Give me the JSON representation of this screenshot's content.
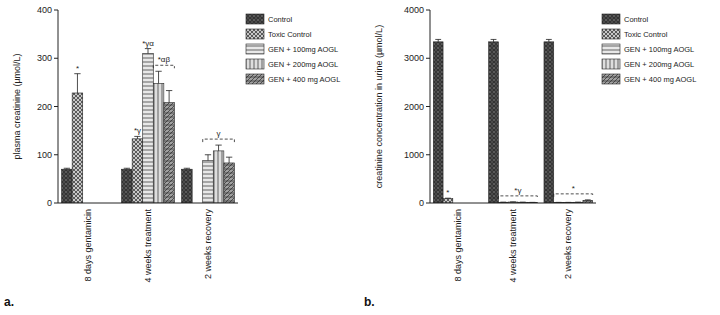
{
  "chart_data": [
    {
      "type": "bar",
      "title": "a.",
      "y_label": "plasma creatinine (µmol/L)",
      "categories": [
        "8 days gentamicin",
        "4 weeks treatment",
        "2 weeks recovery"
      ],
      "ylim": [
        0,
        400
      ],
      "yticks": [
        0,
        100,
        200,
        300,
        400
      ],
      "grid": false,
      "legend": "right",
      "series": [
        {
          "name": "Control",
          "color": "#5a5a5a",
          "values": [
            70,
            70,
            70
          ],
          "errors": [
            2,
            2,
            2
          ]
        },
        {
          "name": "Toxic Control",
          "color": "#c8c8c8",
          "values": [
            228,
            133,
            null
          ],
          "errors": [
            40,
            5,
            null
          ]
        },
        {
          "name": "GEN + 100mg AOGL",
          "color": "#e8e8e8",
          "values": [
            null,
            310,
            88
          ],
          "errors": [
            null,
            10,
            12
          ]
        },
        {
          "name": "GEN + 200mg AOGL",
          "color": "#dedede",
          "values": [
            null,
            248,
            108
          ],
          "errors": [
            null,
            25,
            12
          ]
        },
        {
          "name": "GEN + 400 mg AOGL",
          "color": "#a0a0a0",
          "values": [
            null,
            208,
            83
          ],
          "errors": [
            null,
            25,
            12
          ]
        }
      ],
      "annotations": [
        {
          "text": "*",
          "category": 0,
          "series": [
            1,
            1
          ]
        },
        {
          "text": "*γ",
          "category": 1,
          "series": [
            1,
            1
          ]
        },
        {
          "text": "*γα",
          "category": 1,
          "series": [
            2,
            2
          ]
        },
        {
          "text": "*αβ",
          "category": 1,
          "series": [
            3,
            4
          ]
        },
        {
          "text": "γ",
          "category": 2,
          "series": [
            2,
            4
          ]
        }
      ]
    },
    {
      "type": "bar",
      "title": "b.",
      "y_label": "creatinine concentration in urine (µmol/L)",
      "categories": [
        "8 days gentamicin",
        "4 weeks treatment",
        "2 weeks recovery"
      ],
      "ylim": [
        0,
        4000
      ],
      "yticks": [
        0,
        1000,
        2000,
        3000,
        4000
      ],
      "grid": false,
      "legend": "right",
      "series": [
        {
          "name": "Control",
          "color": "#5a5a5a",
          "values": [
            3340,
            3340,
            3340
          ],
          "errors": [
            50,
            50,
            50
          ]
        },
        {
          "name": "Toxic Control",
          "color": "#c8c8c8",
          "values": [
            90,
            15,
            10
          ],
          "errors": [
            10,
            3,
            3
          ]
        },
        {
          "name": "GEN + 100mg AOGL",
          "color": "#e8e8e8",
          "values": [
            null,
            20,
            10
          ],
          "errors": [
            null,
            3,
            3
          ]
        },
        {
          "name": "GEN + 200mg AOGL",
          "color": "#dedede",
          "values": [
            null,
            15,
            15
          ],
          "errors": [
            null,
            3,
            3
          ]
        },
        {
          "name": "GEN + 400 mg AOGL",
          "color": "#a0a0a0",
          "values": [
            null,
            10,
            55
          ],
          "errors": [
            null,
            3,
            10
          ]
        }
      ],
      "annotations": [
        {
          "text": "*",
          "category": 0,
          "series": [
            1,
            1
          ]
        },
        {
          "text": "*γ",
          "category": 1,
          "series": [
            1,
            4
          ]
        },
        {
          "text": "*",
          "category": 2,
          "series": [
            1,
            4
          ]
        }
      ]
    }
  ]
}
